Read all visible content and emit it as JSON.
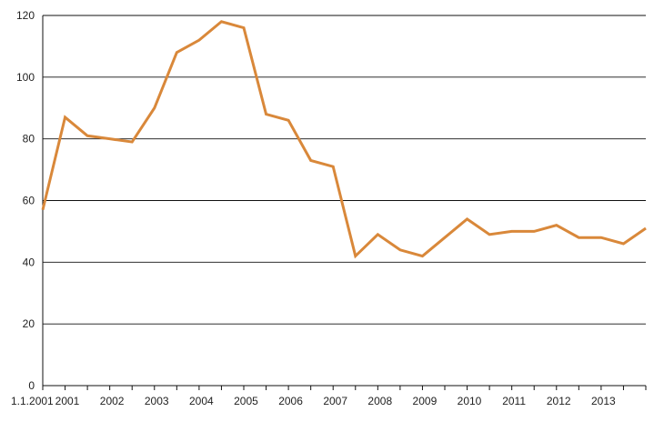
{
  "chart_data": {
    "type": "line",
    "title": "",
    "xlabel": "",
    "ylabel": "",
    "ylim": [
      0,
      120
    ],
    "yticks": [
      0,
      20,
      40,
      60,
      80,
      100,
      120
    ],
    "grid": "horizontal",
    "x_tick_labels": [
      "1.1.2001",
      "2001",
      "2002",
      "2003",
      "2004",
      "2005",
      "2006",
      "2007",
      "2008",
      "2009",
      "2010",
      "2011",
      "2012",
      "2013"
    ],
    "line_color": "#D9883A",
    "series": [
      {
        "values": [
          57,
          87,
          81,
          80,
          79,
          90,
          108,
          112,
          118,
          116,
          88,
          86,
          73,
          71,
          42,
          49,
          44,
          42,
          48,
          54,
          49,
          50,
          50,
          52,
          48,
          48,
          46,
          51
        ]
      }
    ]
  }
}
